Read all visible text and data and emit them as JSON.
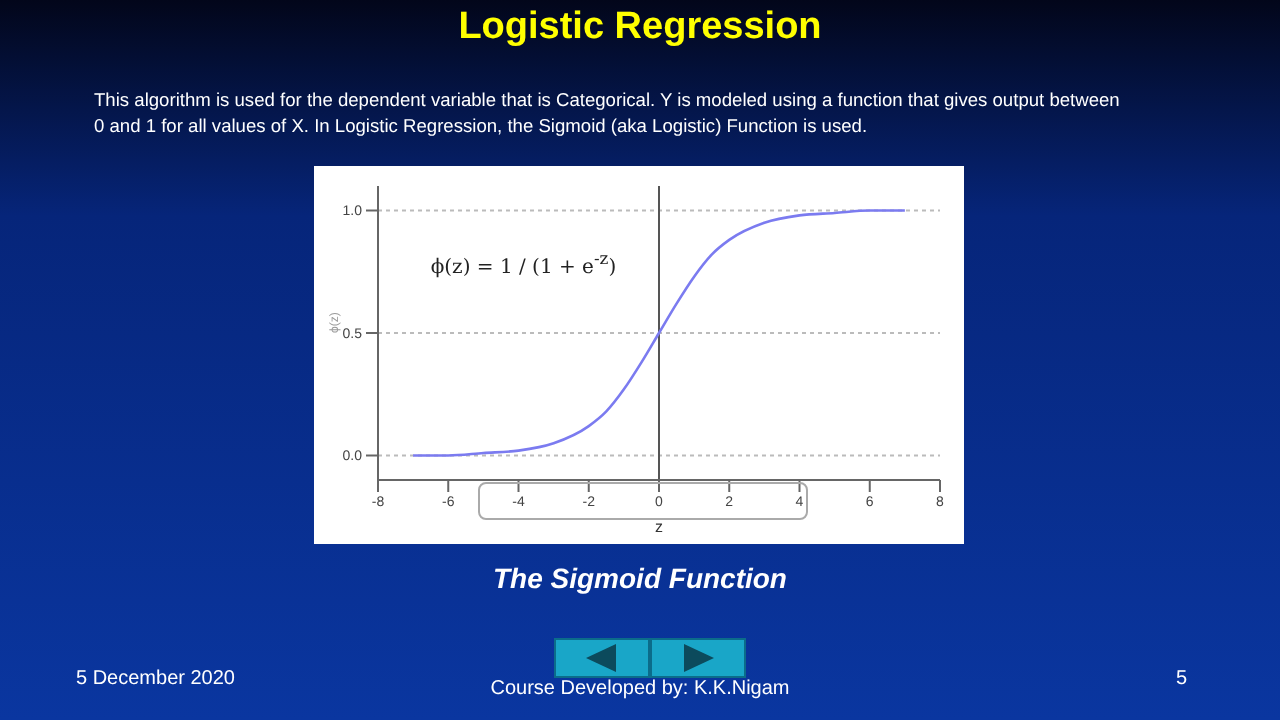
{
  "chart_data": {
    "type": "line",
    "title": "Logistic Regression",
    "subtitle": "This algorithm is used for the dependent variable that is Categorical. Y is modeled using a function that gives output between 0 and 1 for all values of X. In Logistic Regression, the Sigmoid (aka Logistic) Function is used.",
    "xlabel": "z",
    "ylabel": "ϕ(z)",
    "series": [
      {
        "color": "#7b7bf0",
        "x": [
          -7,
          -6,
          -5,
          -4,
          -3,
          -2,
          -1.5,
          -1,
          -0.5,
          0,
          0.5,
          1,
          1.5,
          2,
          3,
          4,
          5,
          6,
          7
        ],
        "values": [
          0.0,
          0.0,
          0.01,
          0.02,
          0.05,
          0.12,
          0.18,
          0.27,
          0.38,
          0.5,
          0.62,
          0.73,
          0.82,
          0.88,
          0.95,
          0.98,
          0.99,
          1.0,
          1.0
        ]
      }
    ],
    "xlim": [
      -8,
      8
    ],
    "xticks": [
      -8,
      -6,
      -4,
      -2,
      0,
      2,
      4,
      6,
      8
    ],
    "ylim": [
      -0.1,
      1.1
    ],
    "yticks": [
      {
        "value": 0,
        "label": "0.0"
      },
      {
        "value": 0.5,
        "label": "0.5"
      },
      {
        "value": 1,
        "label": "1.0"
      }
    ],
    "grid": "y",
    "marker": "none",
    "line_style": "solid",
    "ref_lines": [
      {
        "axis": "x",
        "value": 0,
        "color": "#555555"
      }
    ],
    "annotations": [
      "ϕ(z) = 1 / (1 + e$^{-z}$)",
      "The Sigmoid Function",
      "5 December 2020",
      "Course Developed by: K.K.Nigam",
      "5"
    ]
  }
}
